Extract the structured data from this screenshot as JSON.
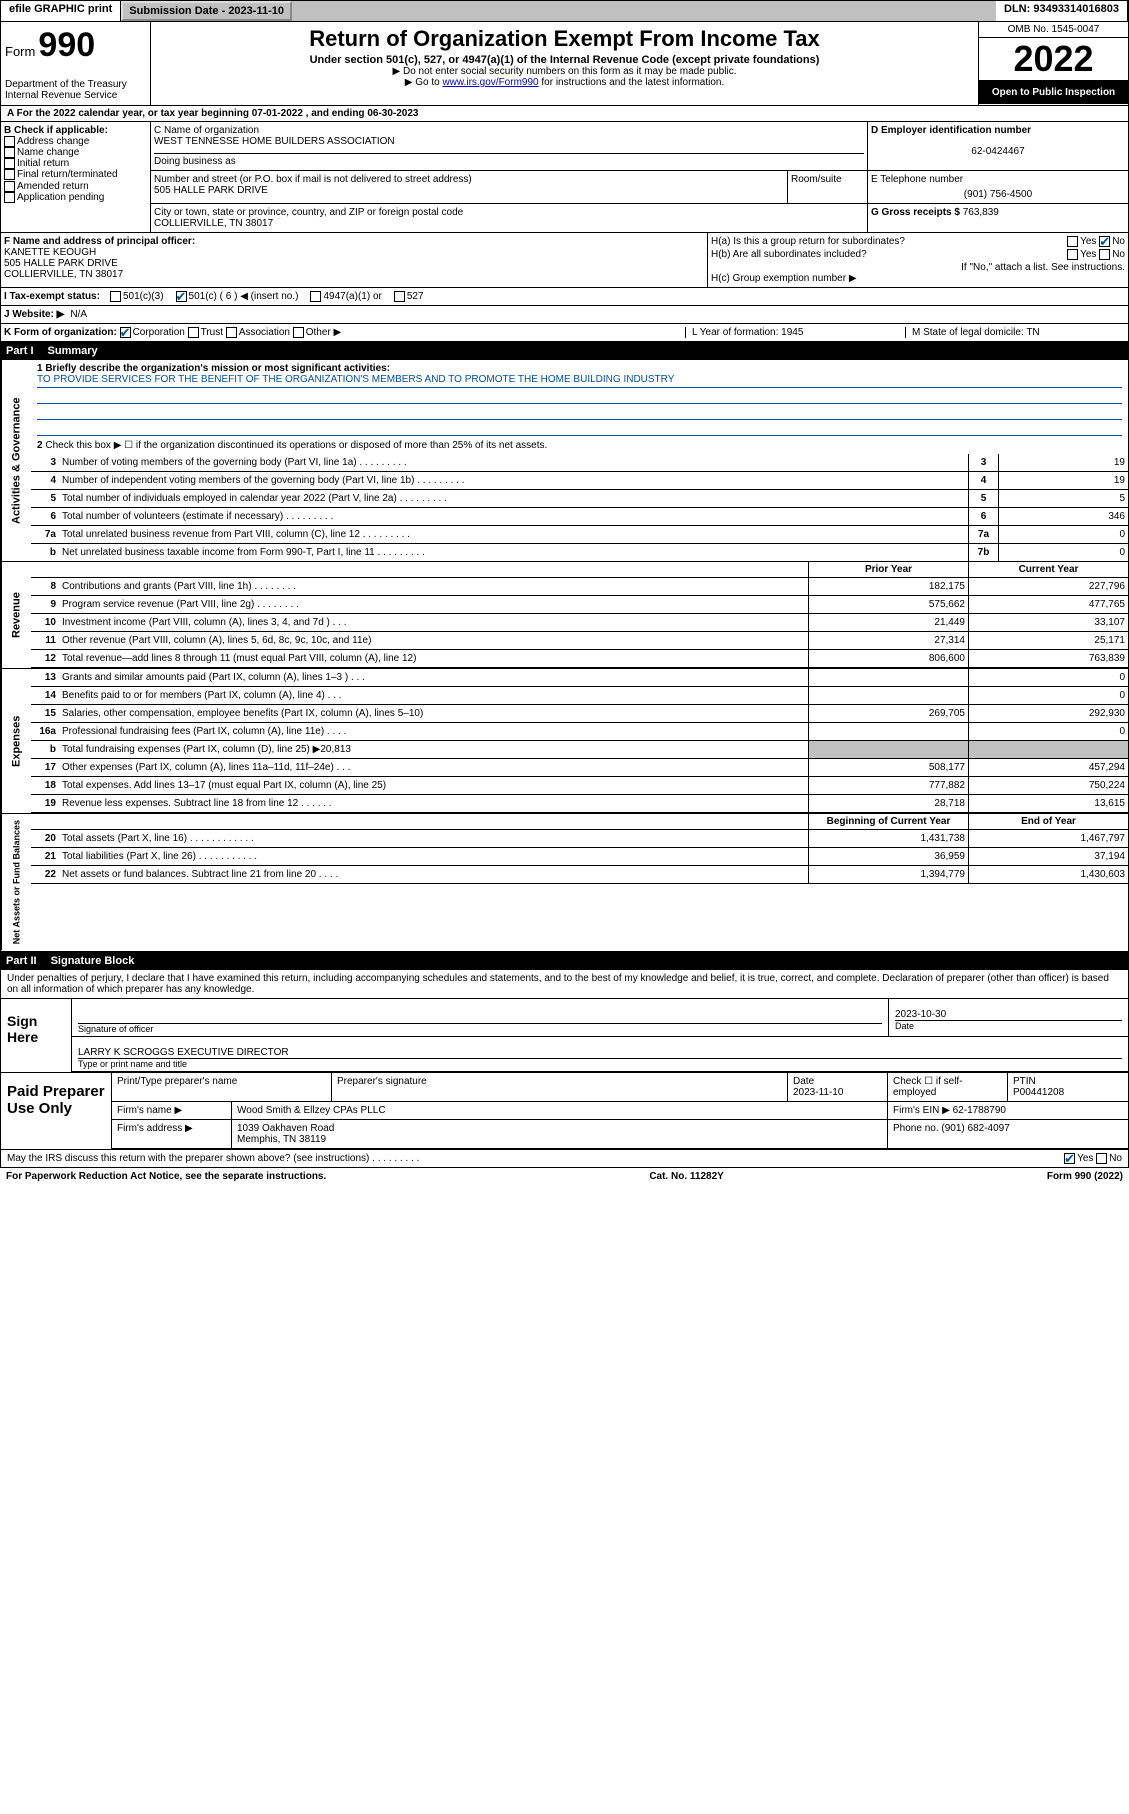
{
  "topbar": {
    "efile": "efile GRAPHIC print",
    "submission": "Submission Date - 2023-11-10",
    "dln": "DLN: 93493314016803"
  },
  "header": {
    "form_label": "Form",
    "form_num": "990",
    "dept": "Department of the Treasury",
    "irs": "Internal Revenue Service",
    "title": "Return of Organization Exempt From Income Tax",
    "subtitle": "Under section 501(c), 527, or 4947(a)(1) of the Internal Revenue Code (except private foundations)",
    "note1": "▶ Do not enter social security numbers on this form as it may be made public.",
    "note2_pre": "▶ Go to ",
    "note2_link": "www.irs.gov/Form990",
    "note2_post": " for instructions and the latest information.",
    "omb": "OMB No. 1545-0047",
    "year": "2022",
    "open": "Open to Public Inspection"
  },
  "row_a": "A For the 2022 calendar year, or tax year beginning 07-01-2022   , and ending 06-30-2023",
  "col_b": {
    "title": "B Check if applicable:",
    "opts": [
      "Address change",
      "Name change",
      "Initial return",
      "Final return/terminated",
      "Amended return",
      "Application pending"
    ]
  },
  "col_c": {
    "name_label": "C Name of organization",
    "name": "WEST TENNESSE HOME BUILDERS ASSOCIATION",
    "dba_label": "Doing business as",
    "addr_label": "Number and street (or P.O. box if mail is not delivered to street address)",
    "addr": "505 HALLE PARK DRIVE",
    "room_label": "Room/suite",
    "city_label": "City or town, state or province, country, and ZIP or foreign postal code",
    "city": "COLLIERVILLE, TN  38017"
  },
  "col_d": {
    "ein_label": "D Employer identification number",
    "ein": "62-0424467",
    "phone_label": "E Telephone number",
    "phone": "(901) 756-4500",
    "gross_label": "G Gross receipts $",
    "gross": "763,839"
  },
  "col_f": {
    "label": "F  Name and address of principal officer:",
    "name": "KANETTE KEOUGH",
    "addr1": "505 HALLE PARK DRIVE",
    "addr2": "COLLIERVILLE, TN  38017"
  },
  "col_h": {
    "ha": "H(a)  Is this a group return for subordinates?",
    "ha_yes": "Yes",
    "ha_no": "No",
    "hb": "H(b)  Are all subordinates included?",
    "hb_yes": "Yes",
    "hb_no": "No",
    "hb_note": "If \"No,\" attach a list. See instructions.",
    "hc": "H(c)  Group exemption number ▶"
  },
  "row_i": {
    "label": "I   Tax-exempt status:",
    "c3": "501(c)(3)",
    "c": "501(c) ( 6 ) ◀ (insert no.)",
    "a1": "4947(a)(1) or",
    "s527": "527"
  },
  "row_j": {
    "label": "J   Website: ▶",
    "val": "N/A"
  },
  "row_k": {
    "label": "K Form of organization:",
    "corp": "Corporation",
    "trust": "Trust",
    "assoc": "Association",
    "other": "Other ▶",
    "l": "L Year of formation: 1945",
    "m": "M State of legal domicile: TN"
  },
  "part1": {
    "header": "Part I",
    "title": "Summary",
    "line1_label": "1  Briefly describe the organization's mission or most significant activities:",
    "line1_text": "TO PROVIDE SERVICES FOR THE BENEFIT OF THE ORGANIZATION'S MEMBERS AND TO PROMOTE THE HOME BUILDING INDUSTRY",
    "line2": "Check this box ▶ ☐  if the organization discontinued its operations or disposed of more than 25% of its net assets."
  },
  "governance": {
    "label": "Activities & Governance",
    "rows": [
      {
        "n": "3",
        "desc": "Number of voting members of the governing body (Part VI, line 1a)",
        "box": "3",
        "val": "19"
      },
      {
        "n": "4",
        "desc": "Number of independent voting members of the governing body (Part VI, line 1b)",
        "box": "4",
        "val": "19"
      },
      {
        "n": "5",
        "desc": "Total number of individuals employed in calendar year 2022 (Part V, line 2a)",
        "box": "5",
        "val": "5"
      },
      {
        "n": "6",
        "desc": "Total number of volunteers (estimate if necessary)",
        "box": "6",
        "val": "346"
      },
      {
        "n": "7a",
        "desc": "Total unrelated business revenue from Part VIII, column (C), line 12",
        "box": "7a",
        "val": "0"
      },
      {
        "n": "b",
        "desc": "Net unrelated business taxable income from Form 990-T, Part I, line 11",
        "box": "7b",
        "val": "0"
      }
    ]
  },
  "twocol_head": {
    "prior": "Prior Year",
    "curr": "Current Year"
  },
  "revenue": {
    "label": "Revenue",
    "rows": [
      {
        "n": "8",
        "desc": "Contributions and grants (Part VIII, line 1h)   .   .   .   .   .   .   .   .",
        "p": "182,175",
        "c": "227,796"
      },
      {
        "n": "9",
        "desc": "Program service revenue (Part VIII, line 2g)   .   .   .   .   .   .   .   .",
        "p": "575,662",
        "c": "477,765"
      },
      {
        "n": "10",
        "desc": "Investment income (Part VIII, column (A), lines 3, 4, and 7d )   .   .   .",
        "p": "21,449",
        "c": "33,107"
      },
      {
        "n": "11",
        "desc": "Other revenue (Part VIII, column (A), lines 5, 6d, 8c, 9c, 10c, and 11e)",
        "p": "27,314",
        "c": "25,171"
      },
      {
        "n": "12",
        "desc": "Total revenue—add lines 8 through 11 (must equal Part VIII, column (A), line 12)",
        "p": "806,600",
        "c": "763,839"
      }
    ]
  },
  "expenses": {
    "label": "Expenses",
    "rows": [
      {
        "n": "13",
        "desc": "Grants and similar amounts paid (Part IX, column (A), lines 1–3 )   .   .   .",
        "p": "",
        "c": "0"
      },
      {
        "n": "14",
        "desc": "Benefits paid to or for members (Part IX, column (A), line 4)   .   .   .",
        "p": "",
        "c": "0"
      },
      {
        "n": "15",
        "desc": "Salaries, other compensation, employee benefits (Part IX, column (A), lines 5–10)",
        "p": "269,705",
        "c": "292,930"
      },
      {
        "n": "16a",
        "desc": "Professional fundraising fees (Part IX, column (A), line 11e)   .   .   .   .",
        "p": "",
        "c": "0"
      },
      {
        "n": "b",
        "desc": "Total fundraising expenses (Part IX, column (D), line 25) ▶20,813",
        "p": "SHADE",
        "c": "SHADE"
      },
      {
        "n": "17",
        "desc": "Other expenses (Part IX, column (A), lines 11a–11d, 11f–24e)   .   .   .",
        "p": "508,177",
        "c": "457,294"
      },
      {
        "n": "18",
        "desc": "Total expenses. Add lines 13–17 (must equal Part IX, column (A), line 25)",
        "p": "777,882",
        "c": "750,224"
      },
      {
        "n": "19",
        "desc": "Revenue less expenses. Subtract line 18 from line 12   .   .   .   .   .   .",
        "p": "28,718",
        "c": "13,615"
      }
    ]
  },
  "netassets_head": {
    "prior": "Beginning of Current Year",
    "curr": "End of Year"
  },
  "netassets": {
    "label": "Net Assets or Fund Balances",
    "rows": [
      {
        "n": "20",
        "desc": "Total assets (Part X, line 16)   .   .   .   .   .   .   .   .   .   .   .   .",
        "p": "1,431,738",
        "c": "1,467,797"
      },
      {
        "n": "21",
        "desc": "Total liabilities (Part X, line 26)   .   .   .   .   .   .   .   .   .   .   .",
        "p": "36,959",
        "c": "37,194"
      },
      {
        "n": "22",
        "desc": "Net assets or fund balances. Subtract line 21 from line 20   .   .   .   .",
        "p": "1,394,779",
        "c": "1,430,603"
      }
    ]
  },
  "part2": {
    "header": "Part II",
    "title": "Signature Block"
  },
  "declare": "Under penalties of perjury, I declare that I have examined this return, including accompanying schedules and statements, and to the best of my knowledge and belief, it is true, correct, and complete. Declaration of preparer (other than officer) is based on all information of which preparer has any knowledge.",
  "sign": {
    "label": "Sign Here",
    "sig_cap": "Signature of officer",
    "date": "2023-10-30",
    "date_cap": "Date",
    "name": "LARRY K SCROGGS  EXECUTIVE DIRECTOR",
    "name_cap": "Type or print name and title"
  },
  "preparer": {
    "label": "Paid Preparer Use Only",
    "h_name": "Print/Type preparer's name",
    "h_sig": "Preparer's signature",
    "h_date": "Date",
    "h_date_v": "2023-11-10",
    "h_check": "Check ☐ if self-employed",
    "h_ptin": "PTIN",
    "h_ptin_v": "P00441208",
    "firm_name_l": "Firm's name    ▶",
    "firm_name": "Wood Smith & Ellzey CPAs PLLC",
    "firm_ein_l": "Firm's EIN ▶",
    "firm_ein": "62-1788790",
    "firm_addr_l": "Firm's address ▶",
    "firm_addr1": "1039 Oakhaven Road",
    "firm_addr2": "Memphis, TN  38119",
    "firm_phone_l": "Phone no.",
    "firm_phone": "(901) 682-4097"
  },
  "bottom": {
    "discuss": "May the IRS discuss this return with the preparer shown above? (see instructions)   .   .   .   .   .   .   .   .   .",
    "yes": "Yes",
    "no": "No"
  },
  "footer": {
    "left": "For Paperwork Reduction Act Notice, see the separate instructions.",
    "mid": "Cat. No. 11282Y",
    "right": "Form 990 (2022)"
  }
}
